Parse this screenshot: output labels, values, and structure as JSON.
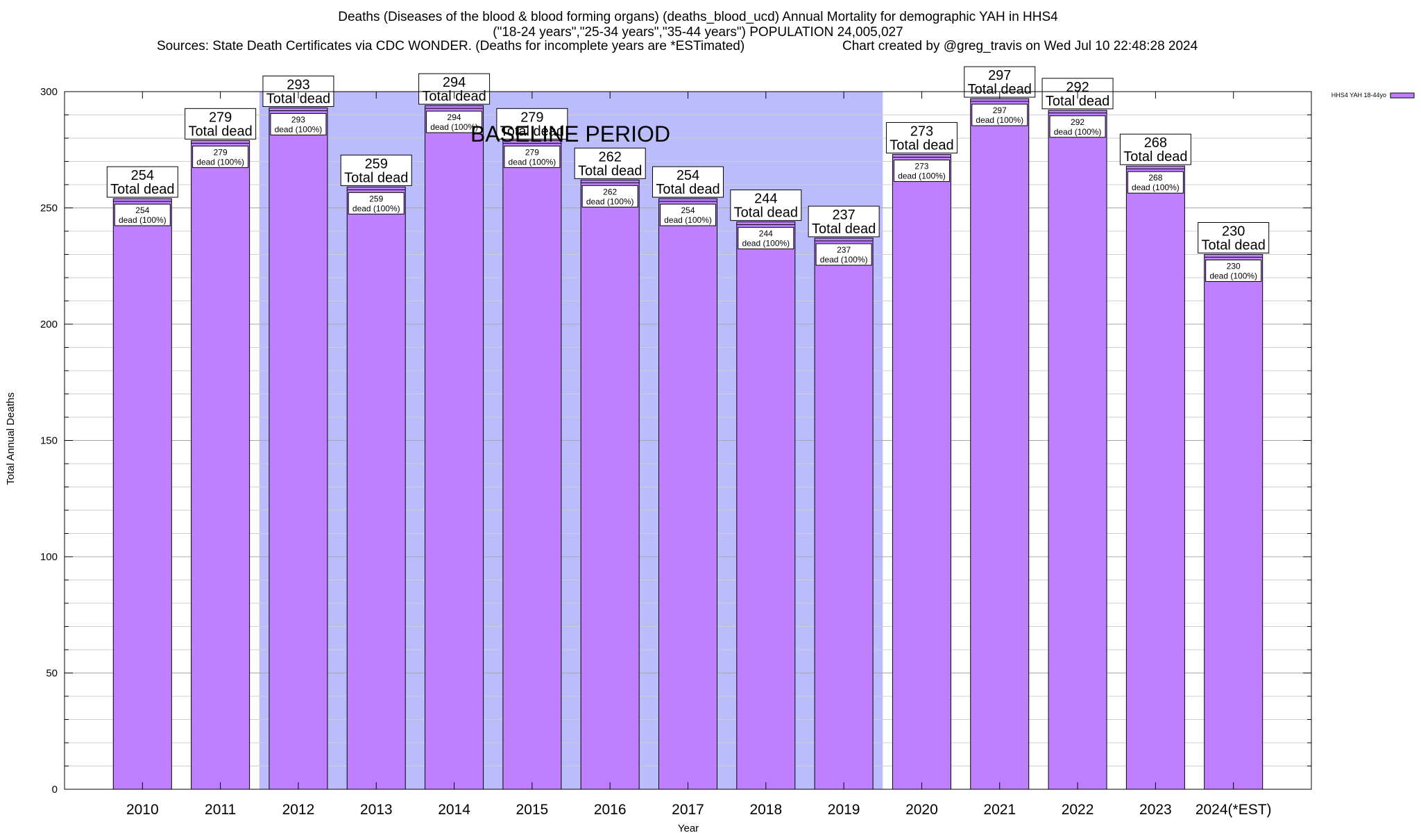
{
  "chart_data": {
    "type": "bar",
    "title": "Deaths (Diseases of the blood & blood forming organs) (deaths_blood_ucd) Annual Mortality for demographic YAH in HHS4",
    "subtitle": "(\"18-24 years\",\"25-34 years\",\"35-44 years\") POPULATION 24,005,027",
    "sources": "Sources: State Death Certificates via CDC WONDER. (Deaths for incomplete years are *ESTimated)",
    "credit": "Chart created by @greg_travis on Wed Jul 10 22:48:28 2024",
    "xlabel": "Year",
    "ylabel": "Total Annual Deaths",
    "ylim": [
      0,
      300
    ],
    "yticks": [
      0,
      50,
      100,
      150,
      200,
      250,
      300
    ],
    "categories": [
      "2010",
      "2011",
      "2012",
      "2013",
      "2014",
      "2015",
      "2016",
      "2017",
      "2018",
      "2019",
      "2020",
      "2021",
      "2022",
      "2023",
      "2024(*EST)"
    ],
    "series": [
      {
        "name": "HHS4 YAH 18-44yo",
        "color": "#bf80ff",
        "values": [
          254,
          279,
          293,
          259,
          294,
          279,
          262,
          254,
          244,
          237,
          273,
          297,
          292,
          268,
          230
        ]
      }
    ],
    "total_label_suffix": "Total dead",
    "inner_label_suffix": "dead (100%)",
    "baseline_period": {
      "label": "BASELINE PERIOD",
      "start": "2012",
      "end": "2019",
      "color": "#bbbcfc"
    },
    "grid": true,
    "legend_placement": "top-right"
  }
}
